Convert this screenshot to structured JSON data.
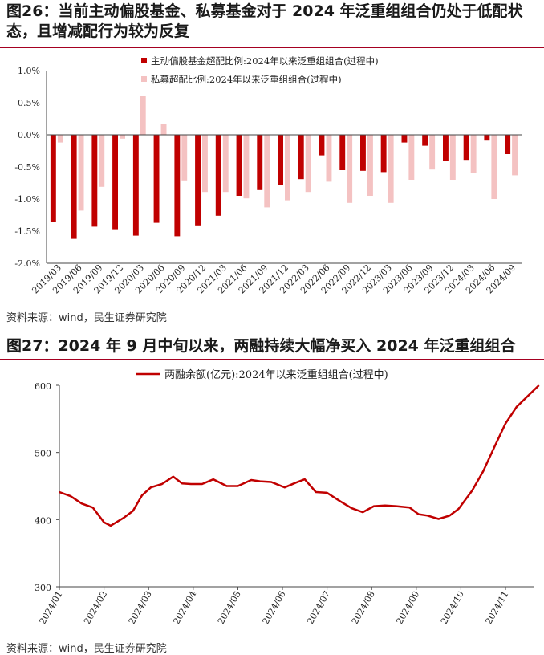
{
  "fig1": {
    "title": "图26：当前主动偏股基金、私募基金对于 2024 年泛重组组合仍处于低配状态，且增减配行为较为反复",
    "source": "资料来源：wind，民生证券研究院",
    "legend": [
      {
        "label": "主动偏股基金超配比例:2024年以来泛重组组合(过程中)",
        "color": "#c00000"
      },
      {
        "label": "私募超配比例:2024年以来泛重组组合(过程中)",
        "color": "#f4c2c2"
      }
    ],
    "chart_data": {
      "type": "bar",
      "categories": [
        "2019/03",
        "2019/06",
        "2019/09",
        "2019/12",
        "2020/03",
        "2020/06",
        "2020/09",
        "2020/12",
        "2021/03",
        "2021/06",
        "2021/09",
        "2021/12",
        "2022/03",
        "2022/06",
        "2022/09",
        "2022/12",
        "2023/03",
        "2023/06",
        "2023/09",
        "2023/12",
        "2024/03",
        "2024/06",
        "2024/09"
      ],
      "series": [
        {
          "name": "主动偏股基金超配比例:2024年以来泛重组组合(过程中)",
          "color": "#c00000",
          "values": [
            -1.35,
            -1.62,
            -1.43,
            -1.47,
            -1.57,
            -1.37,
            -1.58,
            -1.41,
            -1.26,
            -0.95,
            -0.86,
            -0.78,
            -0.69,
            -0.32,
            -0.55,
            -0.56,
            -0.58,
            -0.12,
            -0.17,
            -0.4,
            -0.39,
            -0.09,
            -0.3
          ]
        },
        {
          "name": "私募超配比例:2024年以来泛重组组合(过程中)",
          "color": "#f4c2c2",
          "values": [
            -0.12,
            -1.18,
            -0.81,
            -0.06,
            0.6,
            0.17,
            -0.71,
            -0.89,
            -0.89,
            -0.99,
            -1.13,
            -1.02,
            -0.89,
            -0.73,
            -1.06,
            -0.95,
            -1.06,
            -0.7,
            -0.54,
            -0.7,
            -0.59,
            -1.0,
            -0.63
          ]
        }
      ],
      "yticks": [
        "1.0%",
        "0.5%",
        "0.0%",
        "-0.5%",
        "-1.0%",
        "-1.5%",
        "-2.0%"
      ],
      "ylim": [
        -2.0,
        1.0
      ],
      "legend_position": "top-center"
    }
  },
  "fig2": {
    "title": "图27：2024 年 9 月中旬以来，两融持续大幅净买入 2024 年泛重组组合",
    "source": "资料来源：wind，民生证券研究院",
    "legend": [
      {
        "label": "两融余额(亿元):2024年以来泛重组组合(过程中)",
        "color": "#c00000"
      }
    ],
    "chart_data": {
      "type": "line",
      "xticks": [
        "2024/01",
        "2024/02",
        "2024/03",
        "2024/04",
        "2024/05",
        "2024/06",
        "2024/07",
        "2024/08",
        "2024/09",
        "2024/10",
        "2024/11"
      ],
      "yticks": [
        "600",
        "500",
        "400",
        "300"
      ],
      "ylim": [
        300,
        600
      ],
      "series": [
        {
          "name": "两融余额(亿元):2024年以来泛重组组合(过程中)",
          "color": "#c00000",
          "x": [
            0.0,
            0.25,
            0.5,
            0.75,
            1.0,
            1.15,
            1.45,
            1.65,
            1.85,
            2.05,
            2.3,
            2.55,
            2.75,
            2.95,
            3.2,
            3.45,
            3.75,
            4.0,
            4.3,
            4.5,
            4.75,
            5.05,
            5.3,
            5.5,
            5.75,
            6.0,
            6.3,
            6.55,
            6.8,
            7.05,
            7.3,
            7.55,
            7.85,
            8.05,
            8.25,
            8.5,
            8.75,
            8.95,
            9.25,
            9.5,
            9.75,
            10.0,
            10.25,
            10.5,
            10.75
          ],
          "y": [
            441,
            435,
            424,
            418,
            396,
            391,
            403,
            413,
            436,
            448,
            453,
            464,
            454,
            453,
            453,
            460,
            450,
            450,
            459,
            457,
            456,
            448,
            455,
            460,
            441,
            440,
            427,
            417,
            411,
            420,
            421,
            420,
            418,
            408,
            406,
            401,
            406,
            416,
            443,
            472,
            508,
            543,
            568,
            584,
            600
          ]
        }
      ],
      "legend_position": "top-center"
    }
  }
}
